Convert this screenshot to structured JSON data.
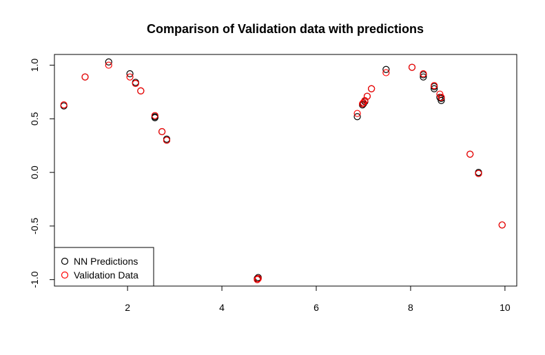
{
  "chart_data": {
    "type": "scatter",
    "title": "Comparison of Validation data with predictions",
    "xlabel": "",
    "ylabel": "",
    "xlim": [
      0.45,
      10.25
    ],
    "ylim": [
      -1.06,
      1.1
    ],
    "x_ticks": [
      2,
      4,
      6,
      8,
      10
    ],
    "x_tick_labels": [
      "2",
      "4",
      "6",
      "8",
      "10"
    ],
    "y_ticks": [
      -1.0,
      -0.5,
      0.0,
      0.5,
      1.0
    ],
    "y_tick_labels": [
      "-1.0",
      "-0.5",
      "0.0",
      "0.5",
      "1.0"
    ],
    "grid": false,
    "legend_position": "bottom-left",
    "series": [
      {
        "name": "NN Predictions",
        "color": "#000000",
        "marker": "open-circle",
        "x": [
          0.65,
          1.1,
          1.6,
          2.05,
          2.17,
          2.17,
          2.28,
          2.58,
          2.58,
          2.73,
          2.83,
          2.83,
          4.75,
          4.77,
          6.87,
          6.98,
          7.0,
          7.03,
          7.08,
          7.17,
          7.48,
          8.03,
          8.27,
          8.27,
          8.5,
          8.5,
          8.62,
          8.65,
          8.65,
          9.26,
          9.44,
          9.44,
          9.94
        ],
        "y": [
          0.62,
          0.89,
          1.03,
          0.92,
          0.84,
          0.83,
          0.76,
          0.51,
          0.52,
          0.38,
          0.31,
          0.3,
          -0.99,
          -0.98,
          0.52,
          0.63,
          0.64,
          0.66,
          0.71,
          0.78,
          0.96,
          0.98,
          0.89,
          0.91,
          0.78,
          0.8,
          0.7,
          0.67,
          0.69,
          0.17,
          0.0,
          -0.01,
          -0.49
        ]
      },
      {
        "name": "Validation Data",
        "color": "#ff0000",
        "marker": "open-circle",
        "x": [
          0.65,
          1.1,
          1.6,
          2.05,
          2.17,
          2.28,
          2.58,
          2.73,
          2.83,
          4.75,
          4.77,
          6.87,
          6.98,
          7.0,
          7.03,
          7.08,
          7.17,
          7.48,
          8.03,
          8.27,
          8.5,
          8.62,
          8.65,
          9.26,
          9.44,
          9.94
        ],
        "y": [
          0.63,
          0.89,
          1.0,
          0.89,
          0.83,
          0.76,
          0.53,
          0.38,
          0.3,
          -1.0,
          -0.99,
          0.55,
          0.64,
          0.65,
          0.67,
          0.71,
          0.78,
          0.93,
          0.98,
          0.92,
          0.81,
          0.73,
          0.7,
          0.17,
          -0.01,
          -0.49
        ]
      }
    ]
  }
}
